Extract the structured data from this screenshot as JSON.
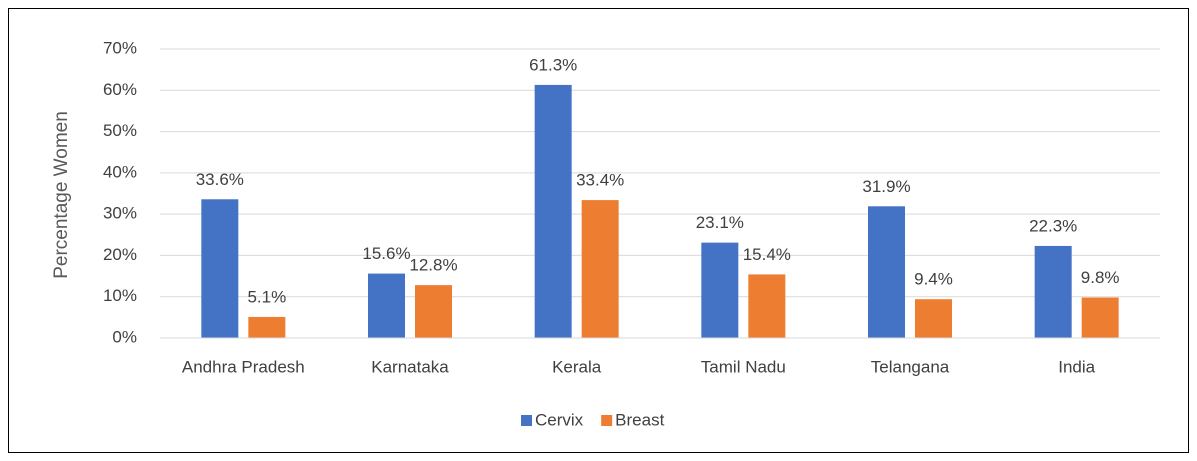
{
  "chart_data": {
    "type": "bar",
    "y_axis_label": "Percentage Women",
    "categories": [
      "Andhra Pradesh",
      "Karnataka",
      "Kerala",
      "Tamil Nadu",
      "Telangana",
      "India"
    ],
    "series": [
      {
        "name": "Cervix",
        "color": "#4472c4",
        "values": [
          33.6,
          15.6,
          61.3,
          23.1,
          31.9,
          22.3
        ],
        "value_labels": [
          "33.6%",
          "15.6%",
          "61.3%",
          "23.1%",
          "31.9%",
          "22.3%"
        ]
      },
      {
        "name": "Breast",
        "color": "#ed7d31",
        "values": [
          5.1,
          12.8,
          33.4,
          15.4,
          9.4,
          9.8
        ],
        "value_labels": [
          "5.1%",
          "12.8%",
          "33.4%",
          "15.4%",
          "9.4%",
          "9.8%"
        ]
      }
    ],
    "ylim": [
      0,
      70
    ],
    "yticks": [
      {
        "value": 0,
        "label": "0%"
      },
      {
        "value": 10,
        "label": "10%"
      },
      {
        "value": 20,
        "label": "20%"
      },
      {
        "value": 30,
        "label": "30%"
      },
      {
        "value": 40,
        "label": "40%"
      },
      {
        "value": 50,
        "label": "50%"
      },
      {
        "value": 60,
        "label": "60%"
      },
      {
        "value": 70,
        "label": "70%"
      }
    ],
    "grid": true,
    "legend": "bottom"
  }
}
